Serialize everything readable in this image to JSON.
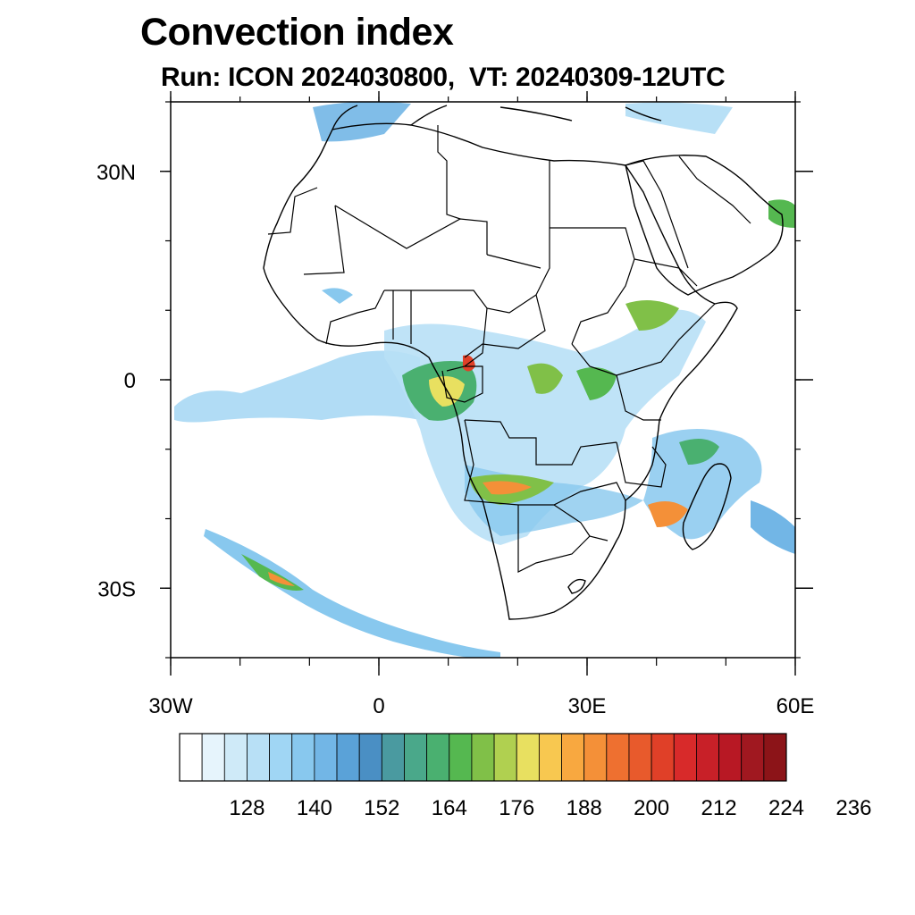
{
  "title": "Convection index",
  "subtitle": "Run: ICON 2024030800,  VT: 20240309-12UTC",
  "map": {
    "region": "Africa",
    "lon_range": [
      -30,
      60
    ],
    "lat_range": [
      -40,
      40
    ],
    "lon_ticks": [
      {
        "value": -30,
        "label": "30W"
      },
      {
        "value": 0,
        "label": "0"
      },
      {
        "value": 30,
        "label": "30E"
      },
      {
        "value": 60,
        "label": "60E"
      }
    ],
    "lat_ticks": [
      {
        "value": 30,
        "label": "30N"
      },
      {
        "value": 0,
        "label": "0"
      },
      {
        "value": -30,
        "label": "30S"
      }
    ]
  },
  "colorbar": {
    "labels": [
      "128",
      "140",
      "152",
      "164",
      "176",
      "188",
      "200",
      "212",
      "224",
      "236"
    ],
    "colors": [
      "#ffffff",
      "#e6f4fc",
      "#cfeaf8",
      "#b8e0f6",
      "#a0d6f4",
      "#88c8ee",
      "#72b6e6",
      "#5aa2d8",
      "#4a8fc4",
      "#4a9aa0",
      "#4aa88a",
      "#4ab070",
      "#55b850",
      "#80c048",
      "#b0d050",
      "#e8e060",
      "#f8c850",
      "#f8a840",
      "#f49038",
      "#ee7030",
      "#e85a2c",
      "#e04028",
      "#d82a2a",
      "#c82028",
      "#b81824",
      "#a01820",
      "#8c1418"
    ]
  },
  "colors": {
    "land_outline": "#000000",
    "frame": "#000000"
  }
}
